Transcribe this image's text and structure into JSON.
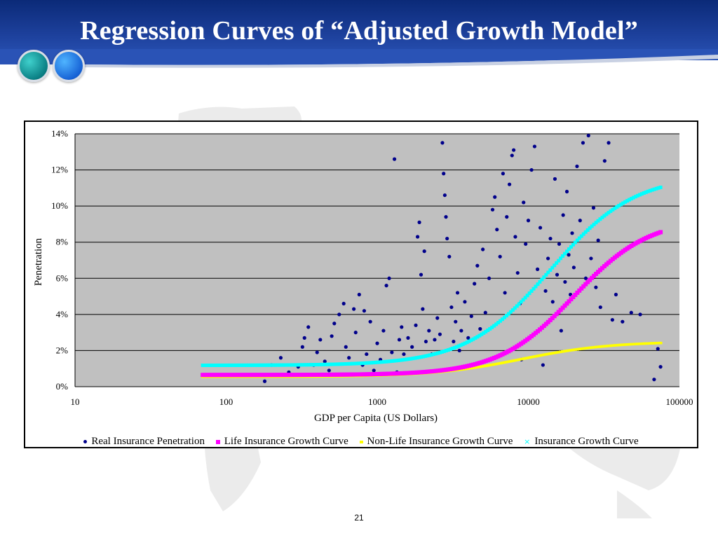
{
  "slide": {
    "title": "Regression Curves of “Adjusted Growth Model”",
    "page_number": "21"
  },
  "colors": {
    "header": "#1c3f9a",
    "plot_background": "#c0c0c0",
    "real": "#00008b",
    "life": "#ff00ff",
    "nonlife": "#ffff00",
    "insurance": "#00ffff"
  },
  "icons": [
    "teal-circle-icon",
    "blue-circle-icon"
  ],
  "chart_data": {
    "type": "scatter",
    "title": "",
    "xlabel": "GDP per Capita (US Dollars)",
    "ylabel": "Penetration",
    "x_scale": "log",
    "xlim": [
      10,
      100000
    ],
    "ylim": [
      0,
      0.14
    ],
    "x_ticks": [
      "10",
      "100",
      "1000",
      "10000",
      "100000"
    ],
    "y_ticks": [
      "0%",
      "2%",
      "4%",
      "6%",
      "8%",
      "10%",
      "12%",
      "14%"
    ],
    "grid": "horizontal",
    "legend_position": "bottom",
    "series": [
      {
        "name": "Real Insurance Penetration",
        "marker": "dot",
        "color": "#00008b",
        "points": [
          [
            180,
            0.003
          ],
          [
            200,
            0.012
          ],
          [
            230,
            0.016
          ],
          [
            260,
            0.008
          ],
          [
            300,
            0.011
          ],
          [
            320,
            0.022
          ],
          [
            330,
            0.027
          ],
          [
            350,
            0.033
          ],
          [
            380,
            0.012
          ],
          [
            400,
            0.019
          ],
          [
            420,
            0.026
          ],
          [
            450,
            0.014
          ],
          [
            480,
            0.009
          ],
          [
            500,
            0.028
          ],
          [
            520,
            0.035
          ],
          [
            560,
            0.04
          ],
          [
            600,
            0.046
          ],
          [
            620,
            0.022
          ],
          [
            650,
            0.016
          ],
          [
            700,
            0.043
          ],
          [
            720,
            0.03
          ],
          [
            760,
            0.051
          ],
          [
            800,
            0.012
          ],
          [
            820,
            0.042
          ],
          [
            850,
            0.018
          ],
          [
            900,
            0.036
          ],
          [
            950,
            0.009
          ],
          [
            1000,
            0.024
          ],
          [
            1050,
            0.015
          ],
          [
            1100,
            0.031
          ],
          [
            1150,
            0.056
          ],
          [
            1200,
            0.06
          ],
          [
            1250,
            0.019
          ],
          [
            1300,
            0.126
          ],
          [
            1350,
            0.008
          ],
          [
            1400,
            0.026
          ],
          [
            1450,
            0.033
          ],
          [
            1500,
            0.018
          ],
          [
            1600,
            0.027
          ],
          [
            1700,
            0.022
          ],
          [
            1800,
            0.034
          ],
          [
            1850,
            0.083
          ],
          [
            1900,
            0.091
          ],
          [
            1950,
            0.062
          ],
          [
            2000,
            0.043
          ],
          [
            2050,
            0.075
          ],
          [
            2100,
            0.025
          ],
          [
            2200,
            0.031
          ],
          [
            2300,
            0.018
          ],
          [
            2400,
            0.026
          ],
          [
            2500,
            0.038
          ],
          [
            2600,
            0.029
          ],
          [
            2700,
            0.135
          ],
          [
            2750,
            0.118
          ],
          [
            2800,
            0.106
          ],
          [
            2850,
            0.094
          ],
          [
            2900,
            0.082
          ],
          [
            3000,
            0.072
          ],
          [
            3100,
            0.044
          ],
          [
            3200,
            0.025
          ],
          [
            3300,
            0.036
          ],
          [
            3400,
            0.052
          ],
          [
            3500,
            0.02
          ],
          [
            3600,
            0.031
          ],
          [
            3800,
            0.047
          ],
          [
            4000,
            0.027
          ],
          [
            4200,
            0.039
          ],
          [
            4400,
            0.057
          ],
          [
            4600,
            0.067
          ],
          [
            4800,
            0.032
          ],
          [
            5000,
            0.076
          ],
          [
            5200,
            0.041
          ],
          [
            5500,
            0.06
          ],
          [
            5800,
            0.098
          ],
          [
            6000,
            0.105
          ],
          [
            6200,
            0.087
          ],
          [
            6500,
            0.072
          ],
          [
            6800,
            0.118
          ],
          [
            7000,
            0.052
          ],
          [
            7200,
            0.094
          ],
          [
            7500,
            0.112
          ],
          [
            7800,
            0.128
          ],
          [
            8000,
            0.131
          ],
          [
            8200,
            0.083
          ],
          [
            8500,
            0.063
          ],
          [
            8800,
            0.046
          ],
          [
            9000,
            0.015
          ],
          [
            9300,
            0.102
          ],
          [
            9600,
            0.079
          ],
          [
            10000,
            0.092
          ],
          [
            10500,
            0.12
          ],
          [
            11000,
            0.133
          ],
          [
            11500,
            0.065
          ],
          [
            12000,
            0.088
          ],
          [
            12500,
            0.012
          ],
          [
            13000,
            0.053
          ],
          [
            13500,
            0.071
          ],
          [
            14000,
            0.082
          ],
          [
            14500,
            0.047
          ],
          [
            15000,
            0.115
          ],
          [
            15500,
            0.062
          ],
          [
            16000,
            0.079
          ],
          [
            16500,
            0.031
          ],
          [
            17000,
            0.095
          ],
          [
            17500,
            0.058
          ],
          [
            18000,
            0.108
          ],
          [
            18500,
            0.073
          ],
          [
            19000,
            0.051
          ],
          [
            19500,
            0.085
          ],
          [
            20000,
            0.066
          ],
          [
            21000,
            0.122
          ],
          [
            22000,
            0.092
          ],
          [
            23000,
            0.135
          ],
          [
            24000,
            0.06
          ],
          [
            25000,
            0.139
          ],
          [
            26000,
            0.071
          ],
          [
            27000,
            0.099
          ],
          [
            28000,
            0.055
          ],
          [
            29000,
            0.081
          ],
          [
            30000,
            0.044
          ],
          [
            32000,
            0.125
          ],
          [
            34000,
            0.135
          ],
          [
            36000,
            0.037
          ],
          [
            38000,
            0.051
          ],
          [
            42000,
            0.036
          ],
          [
            48000,
            0.041
          ],
          [
            55000,
            0.04
          ],
          [
            68000,
            0.004
          ],
          [
            72000,
            0.021
          ],
          [
            75000,
            0.011
          ]
        ]
      },
      {
        "name": "Life Insurance Growth Curve",
        "marker": "square",
        "color": "#ff00ff",
        "curve": {
          "base": 0.0065,
          "top": 0.0935,
          "midpoint": 20000,
          "slope": 4.0,
          "x_range": [
            70,
            75000
          ]
        }
      },
      {
        "name": "Non-Life Insurance Growth Curve",
        "marker": "dash",
        "color": "#ffff00",
        "curve": {
          "base": 0.0055,
          "top": 0.025,
          "midpoint": 9000,
          "slope": 3.4,
          "x_range": [
            70,
            75000
          ]
        }
      },
      {
        "name": "Insurance Growth Curve",
        "marker": "x",
        "color": "#00ffff",
        "curve": {
          "base": 0.0118,
          "top": 0.1175,
          "midpoint": 14000,
          "slope": 3.6,
          "x_range": [
            70,
            75000
          ]
        }
      }
    ]
  }
}
